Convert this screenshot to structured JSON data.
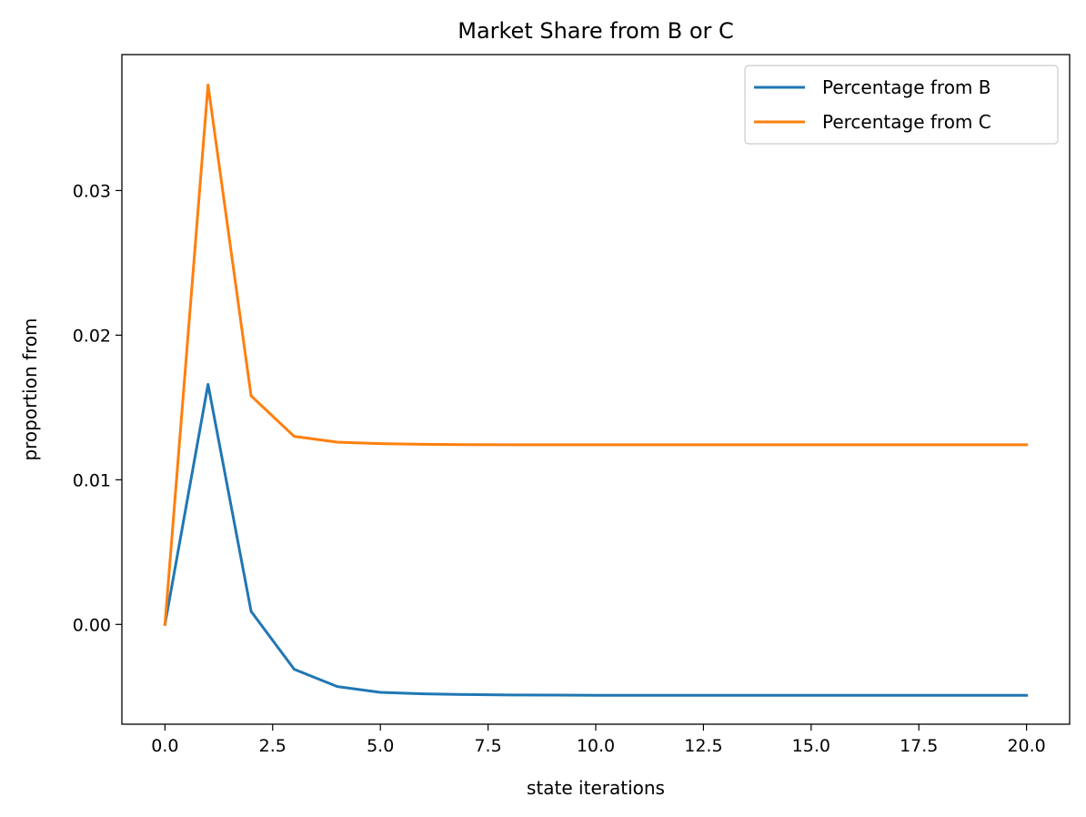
{
  "chart_data": {
    "type": "line",
    "title": "Market Share from B or C",
    "xlabel": "state iterations",
    "ylabel": "proportion from",
    "xlim": [
      -1.0,
      21.0
    ],
    "ylim": [
      -0.0069,
      0.0394
    ],
    "xticks": [
      0,
      2.5,
      5,
      7.5,
      10,
      12.5,
      15,
      17.5,
      20
    ],
    "xtick_labels": [
      "0.0",
      "2.5",
      "5.0",
      "7.5",
      "10.0",
      "12.5",
      "15.0",
      "17.5",
      "20.0"
    ],
    "yticks": [
      0.0,
      0.01,
      0.02,
      0.03
    ],
    "ytick_labels": [
      "0.00",
      "0.01",
      "0.02",
      "0.03"
    ],
    "grid": false,
    "legend_position": "top-right",
    "x": [
      0,
      1,
      2,
      3,
      4,
      5,
      6,
      7,
      8,
      9,
      10,
      11,
      12,
      13,
      14,
      15,
      16,
      17,
      18,
      19,
      20
    ],
    "series": [
      {
        "name": "Percentage from B",
        "color": "#1f77b4",
        "values": [
          0.0,
          0.0166,
          0.0009,
          -0.0031,
          -0.0043,
          -0.0047,
          -0.0048,
          -0.00485,
          -0.00488,
          -0.00489,
          -0.0049,
          -0.0049,
          -0.0049,
          -0.0049,
          -0.0049,
          -0.0049,
          -0.0049,
          -0.0049,
          -0.0049,
          -0.0049,
          -0.0049
        ]
      },
      {
        "name": "Percentage from C",
        "color": "#ff7f0e",
        "values": [
          0.0,
          0.0373,
          0.0158,
          0.013,
          0.0126,
          0.0125,
          0.01245,
          0.01243,
          0.01242,
          0.01242,
          0.01242,
          0.01242,
          0.01242,
          0.01242,
          0.01242,
          0.01242,
          0.01242,
          0.01242,
          0.01242,
          0.01242,
          0.01242
        ]
      }
    ]
  }
}
